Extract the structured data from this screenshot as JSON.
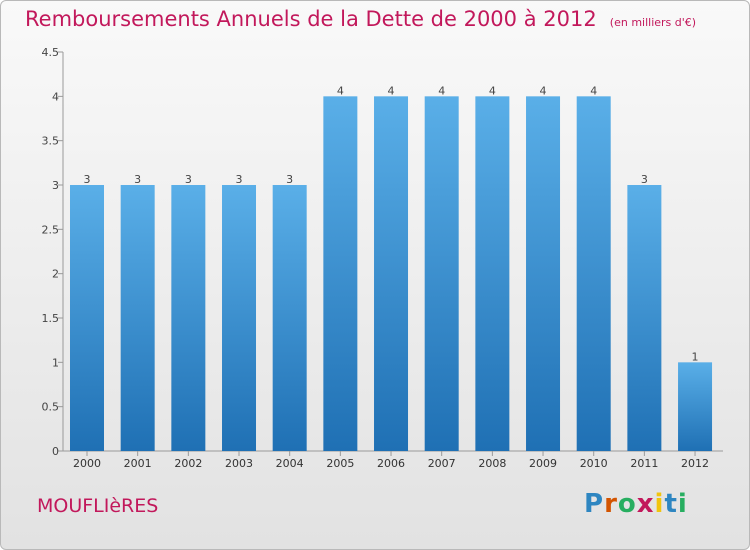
{
  "title": "Remboursements Annuels de la Dette de 2000 à 2012",
  "unit": "(en milliers d'€)",
  "town": "MOUFLIèRES",
  "logo": "Proxiti",
  "colors": {
    "title": "#c2185b",
    "bar_top": "#5aafe8",
    "bar_bottom": "#1f70b4"
  },
  "chart_data": {
    "type": "bar",
    "categories": [
      "2000",
      "2001",
      "2002",
      "2003",
      "2004",
      "2005",
      "2006",
      "2007",
      "2008",
      "2009",
      "2010",
      "2011",
      "2012"
    ],
    "values": [
      3,
      3,
      3,
      3,
      3,
      4,
      4,
      4,
      4,
      4,
      4,
      3,
      1
    ],
    "data_labels": [
      "3",
      "3",
      "3",
      "3",
      "3",
      "4",
      "4",
      "4",
      "4",
      "4",
      "4",
      "3",
      "1"
    ],
    "ylim": [
      0,
      4.5
    ],
    "yticks": [
      0,
      0.5,
      1,
      1.5,
      2,
      2.5,
      3,
      3.5,
      4,
      4.5
    ],
    "ytick_labels": [
      "0",
      "0.5",
      "1",
      "1.5",
      "2",
      "2.5",
      "3",
      "3.5",
      "4",
      "4.5"
    ],
    "grid": false
  }
}
